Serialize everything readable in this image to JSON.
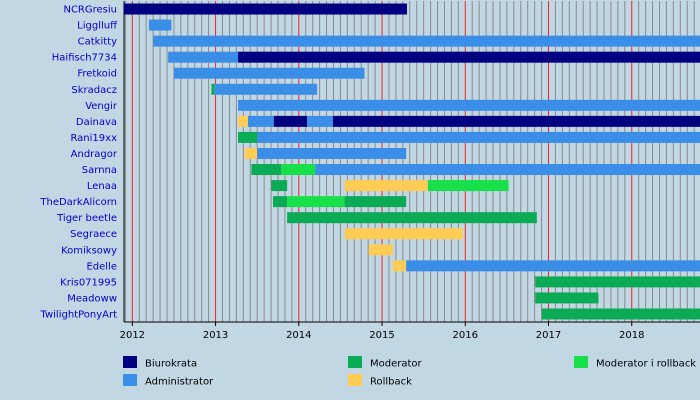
{
  "chart_data": {
    "type": "bar",
    "orientation": "horizontal-timeline",
    "x_axis": {
      "ticks": [
        2012,
        2013,
        2014,
        2015,
        2016,
        2017,
        2018
      ],
      "range": [
        2011.9,
        2018.82
      ]
    },
    "roles": [
      {
        "key": "biurokrata",
        "label": "Biurokrata",
        "color": "#000080"
      },
      {
        "key": "administrator",
        "label": "Administrator",
        "color": "#3a8ee8"
      },
      {
        "key": "moderator",
        "label": "Moderator",
        "color": "#0bab56"
      },
      {
        "key": "rollback",
        "label": "Rollback",
        "color": "#ffcc55"
      },
      {
        "key": "modrollback",
        "label": "Moderator i rollback",
        "color": "#18e04a"
      }
    ],
    "users": [
      {
        "name": "NCRGresiu",
        "segments": [
          {
            "role": "biurokrata",
            "start": 2011.9,
            "end": 2015.3
          }
        ]
      },
      {
        "name": "Ligglluff",
        "segments": [
          {
            "role": "administrator",
            "start": 2012.2,
            "end": 2012.47
          }
        ]
      },
      {
        "name": "Catkitty",
        "segments": [
          {
            "role": "administrator",
            "start": 2012.25,
            "end": 2018.82
          }
        ]
      },
      {
        "name": "Haifisch7734",
        "segments": [
          {
            "role": "administrator",
            "start": 2012.43,
            "end": 2013.27
          },
          {
            "role": "biurokrata",
            "start": 2013.27,
            "end": 2018.82
          }
        ]
      },
      {
        "name": "Fretkoid",
        "segments": [
          {
            "role": "administrator",
            "start": 2012.5,
            "end": 2014.79
          }
        ]
      },
      {
        "name": "Skradacz",
        "segments": [
          {
            "role": "moderator",
            "start": 2012.95,
            "end": 2012.99
          },
          {
            "role": "administrator",
            "start": 2012.99,
            "end": 2014.22
          }
        ]
      },
      {
        "name": "Vengir",
        "segments": [
          {
            "role": "administrator",
            "start": 2013.27,
            "end": 2018.82
          }
        ]
      },
      {
        "name": "Dainava",
        "segments": [
          {
            "role": "rollback",
            "start": 2013.27,
            "end": 2013.39
          },
          {
            "role": "administrator",
            "start": 2013.39,
            "end": 2013.7
          },
          {
            "role": "biurokrata",
            "start": 2013.7,
            "end": 2014.1
          },
          {
            "role": "administrator",
            "start": 2014.1,
            "end": 2014.41
          },
          {
            "role": "biurokrata",
            "start": 2014.41,
            "end": 2018.82
          }
        ]
      },
      {
        "name": "Rani19xx",
        "segments": [
          {
            "role": "moderator",
            "start": 2013.27,
            "end": 2013.5
          },
          {
            "role": "administrator",
            "start": 2013.5,
            "end": 2018.82
          }
        ]
      },
      {
        "name": "Andragor",
        "segments": [
          {
            "role": "rollback",
            "start": 2013.35,
            "end": 2013.5
          },
          {
            "role": "administrator",
            "start": 2013.5,
            "end": 2015.29
          }
        ]
      },
      {
        "name": "Sarnna",
        "segments": [
          {
            "role": "moderator",
            "start": 2013.43,
            "end": 2013.79
          },
          {
            "role": "modrollback",
            "start": 2013.79,
            "end": 2014.2
          },
          {
            "role": "administrator",
            "start": 2014.2,
            "end": 2018.82
          }
        ]
      },
      {
        "name": "Lenaa",
        "segments": [
          {
            "role": "moderator",
            "start": 2013.67,
            "end": 2013.86
          },
          {
            "role": "rollback",
            "start": 2014.55,
            "end": 2015.55
          },
          {
            "role": "modrollback",
            "start": 2015.55,
            "end": 2016.52
          }
        ]
      },
      {
        "name": "TheDarkAlicorn",
        "segments": [
          {
            "role": "moderator",
            "start": 2013.69,
            "end": 2013.86
          },
          {
            "role": "modrollback",
            "start": 2013.86,
            "end": 2014.55
          },
          {
            "role": "moderator",
            "start": 2014.55,
            "end": 2015.29
          }
        ]
      },
      {
        "name": "Tiger beetle",
        "segments": [
          {
            "role": "moderator",
            "start": 2013.86,
            "end": 2016.86
          }
        ]
      },
      {
        "name": "Segraece",
        "segments": [
          {
            "role": "rollback",
            "start": 2014.55,
            "end": 2015.97
          }
        ]
      },
      {
        "name": "Komiksowy",
        "segments": [
          {
            "role": "rollback",
            "start": 2014.84,
            "end": 2015.13
          }
        ]
      },
      {
        "name": "Edelle",
        "segments": [
          {
            "role": "rollback",
            "start": 2015.13,
            "end": 2015.29
          },
          {
            "role": "administrator",
            "start": 2015.29,
            "end": 2018.82
          }
        ]
      },
      {
        "name": "Kris071995",
        "segments": [
          {
            "role": "moderator",
            "start": 2016.84,
            "end": 2018.82
          }
        ]
      },
      {
        "name": "Meadoww",
        "segments": [
          {
            "role": "moderator",
            "start": 2016.84,
            "end": 2017.6
          }
        ]
      },
      {
        "name": "TwilightPonyArt",
        "segments": [
          {
            "role": "moderator",
            "start": 2016.92,
            "end": 2018.82
          }
        ]
      }
    ]
  }
}
